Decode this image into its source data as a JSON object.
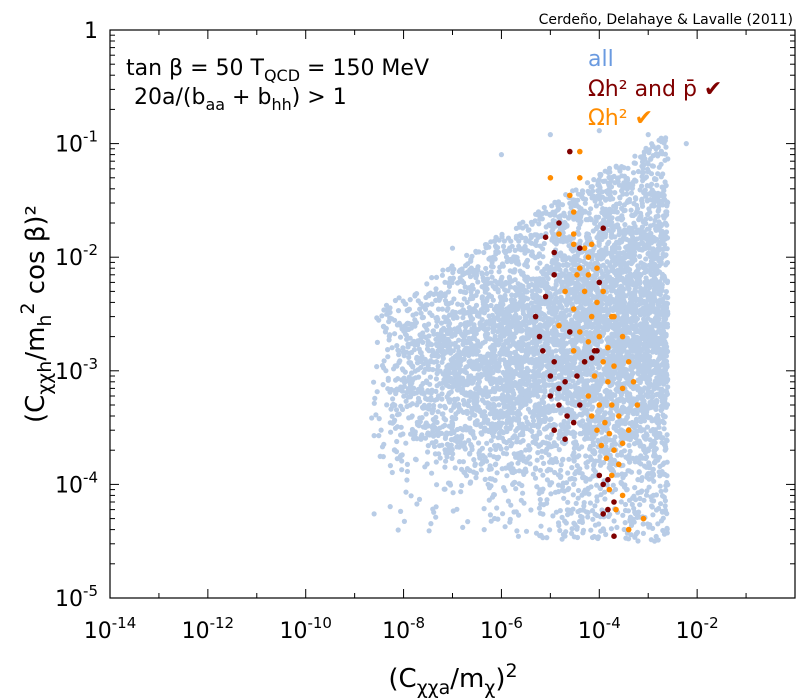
{
  "chart_data": {
    "type": "scatter",
    "credit": "Cerdeño, Delahaye & Lavalle (2011)",
    "xlabel": {
      "base": "(C",
      "sub": "χχa",
      "mid": "/m",
      "sub2": "χ",
      "end": ")",
      "sup": "2"
    },
    "ylabel": {
      "base": "(C",
      "sub": "χχh",
      "mid": "/m",
      "sub2": "h",
      "sup": "2",
      "end": " cos β)²"
    },
    "annotation_line1": {
      "pre": "tan β = 50  T",
      "sub": "QCD",
      "post": " = 150 MeV"
    },
    "annotation_line2": {
      "pre": "20a/(b",
      "sub": "aa",
      "mid": " + b",
      "sub2": "hh",
      "post": ") > 1"
    },
    "xscale": "log",
    "yscale": "log",
    "xlim": [
      1e-14,
      1
    ],
    "ylim": [
      1e-05,
      1
    ],
    "x_tick_labels": [
      {
        "value": 1e-14,
        "mant": "10",
        "exp": "-14"
      },
      {
        "value": 1e-12,
        "mant": "10",
        "exp": "-12"
      },
      {
        "value": 1e-10,
        "mant": "10",
        "exp": "-10"
      },
      {
        "value": 1e-08,
        "mant": "10",
        "exp": "-8"
      },
      {
        "value": 1e-06,
        "mant": "10",
        "exp": "-6"
      },
      {
        "value": 0.0001,
        "mant": "10",
        "exp": "-4"
      },
      {
        "value": 0.01,
        "mant": "10",
        "exp": "-2"
      }
    ],
    "y_tick_labels": [
      {
        "value": 1,
        "mant": "1",
        "exp": ""
      },
      {
        "value": 0.1,
        "mant": "10",
        "exp": "-1"
      },
      {
        "value": 0.01,
        "mant": "10",
        "exp": "-2"
      },
      {
        "value": 0.001,
        "mant": "10",
        "exp": "-3"
      },
      {
        "value": 0.0001,
        "mant": "10",
        "exp": "-4"
      },
      {
        "value": 1e-05,
        "mant": "10",
        "exp": "-5"
      }
    ],
    "grid": false,
    "legend_position": "top-right",
    "series": [
      {
        "name": "all",
        "color": "#b8cce6",
        "density_model": {
          "count": 6000,
          "x_log_range": [
            -8.7,
            -2.6
          ],
          "x_log_center": -3.9,
          "y_log_center": -2.6,
          "y_log_spread": 0.75,
          "y_log_max": -0.9,
          "y_log_min": -4.5
        },
        "values": [
          [
            2.5e-09,
            5.5e-05
          ],
          [
            1.2e-08,
            0.00013
          ],
          [
            1.5e-08,
            0.0004
          ],
          [
            3e-08,
            0.0012
          ],
          [
            1e-07,
            0.012
          ],
          [
            2e-07,
            0.004
          ],
          [
            1e-06,
            0.08
          ],
          [
            1e-05,
            0.12
          ],
          [
            0.0001,
            0.13
          ],
          [
            0.001,
            0.12
          ],
          [
            0.006,
            0.1
          ],
          [
            0.002,
            0.00015
          ],
          [
            3e-05,
            0.0001
          ],
          [
            0.001,
            0.0002
          ],
          [
            5e-06,
            0.0005
          ],
          [
            2e-05,
            0.02
          ]
        ]
      },
      {
        "name": "Ωh² and p̄ ✔",
        "color": "#800000",
        "values": [
          [
            2.5e-05,
            0.085
          ],
          [
            1.5e-05,
            0.02
          ],
          [
            0.00012,
            0.018
          ],
          [
            8e-06,
            0.015
          ],
          [
            1.2e-05,
            0.011
          ],
          [
            4e-05,
            0.012
          ],
          [
            1.2e-05,
            0.007
          ],
          [
            8e-06,
            0.0045
          ],
          [
            0.0001,
            0.006
          ],
          [
            5e-06,
            0.003
          ],
          [
            6e-06,
            0.002
          ],
          [
            7e-06,
            0.0015
          ],
          [
            1.2e-05,
            0.0012
          ],
          [
            1e-05,
            0.0009
          ],
          [
            1.5e-05,
            0.0007
          ],
          [
            2e-05,
            0.0008
          ],
          [
            1e-05,
            0.0006
          ],
          [
            1.5e-05,
            0.0005
          ],
          [
            2.2e-05,
            0.0004
          ],
          [
            3e-05,
            0.00035
          ],
          [
            1.2e-05,
            0.0003
          ],
          [
            2e-05,
            0.00025
          ],
          [
            4e-05,
            0.0005
          ],
          [
            5e-05,
            0.0012
          ],
          [
            8e-05,
            0.0015
          ],
          [
            0.0001,
            0.00012
          ],
          [
            0.00015,
            0.00011
          ],
          [
            0.00012,
            0.0001
          ],
          [
            0.0002,
            7e-05
          ],
          [
            0.00015,
            6e-05
          ],
          [
            0.00012,
            5.5e-05
          ],
          [
            0.0002,
            3.5e-05
          ],
          [
            9e-05,
            0.0015
          ],
          [
            7e-05,
            0.0013
          ],
          [
            3.5e-05,
            0.0009
          ],
          [
            2.5e-05,
            0.0022
          ]
        ]
      },
      {
        "name": "Ωh² ✔",
        "color": "#ff8c00",
        "values": [
          [
            4e-05,
            0.085
          ],
          [
            1e-05,
            0.05
          ],
          [
            4e-05,
            0.05
          ],
          [
            2.5e-05,
            0.035
          ],
          [
            3e-05,
            0.025
          ],
          [
            1.5e-05,
            0.016
          ],
          [
            3e-05,
            0.013
          ],
          [
            5e-05,
            0.012
          ],
          [
            7e-05,
            0.013
          ],
          [
            4e-05,
            0.008
          ],
          [
            6e-05,
            0.007
          ],
          [
            9e-05,
            0.008
          ],
          [
            2e-05,
            0.005
          ],
          [
            5e-05,
            0.005
          ],
          [
            0.00012,
            0.005
          ],
          [
            3e-05,
            0.0035
          ],
          [
            7e-05,
            0.003
          ],
          [
            0.0002,
            0.003
          ],
          [
            1.5e-05,
            0.0025
          ],
          [
            4e-05,
            0.0022
          ],
          [
            0.0001,
            0.002
          ],
          [
            3e-05,
            0.0015
          ],
          [
            6e-05,
            0.0018
          ],
          [
            0.00015,
            0.0016
          ],
          [
            0.0003,
            0.002
          ],
          [
            5e-05,
            0.0012
          ],
          [
            0.00012,
            0.0012
          ],
          [
            0.0002,
            0.0011
          ],
          [
            0.0004,
            0.0012
          ],
          [
            8e-05,
            0.0009
          ],
          [
            0.00015,
            0.0008
          ],
          [
            0.0003,
            0.0007
          ],
          [
            0.0005,
            0.0008
          ],
          [
            6e-05,
            0.0006
          ],
          [
            0.0001,
            0.0005
          ],
          [
            0.00018,
            0.0005
          ],
          [
            7e-05,
            0.0004
          ],
          [
            0.00013,
            0.00035
          ],
          [
            0.00025,
            0.0004
          ],
          [
            9e-05,
            0.0003
          ],
          [
            0.00016,
            0.00028
          ],
          [
            0.0004,
            0.0003
          ],
          [
            0.00011,
            0.00022
          ],
          [
            0.0002,
            0.0002
          ],
          [
            0.0003,
            0.00023
          ],
          [
            0.00014,
            0.00017
          ],
          [
            0.00025,
            0.00015
          ],
          [
            0.00018,
            0.00012
          ],
          [
            0.00016,
            9e-05
          ],
          [
            0.0003,
            8e-05
          ],
          [
            0.00022,
            6e-05
          ],
          [
            0.0008,
            5e-05
          ],
          [
            0.0004,
            4e-05
          ],
          [
            3e-05,
            0.016
          ],
          [
            6e-05,
            0.01
          ],
          [
            3.5e-05,
            0.007
          ],
          [
            9e-05,
            0.004
          ],
          [
            0.00018,
            0.003
          ],
          [
            0.0006,
            0.0005
          ],
          [
            2.5e-05,
            0.0022
          ]
        ]
      }
    ]
  }
}
